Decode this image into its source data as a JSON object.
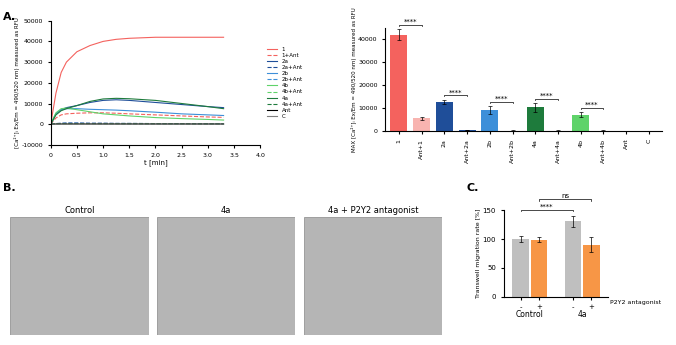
{
  "chart_data": [
    {
      "type": "line",
      "panel": "A.",
      "x_label": "t [min]",
      "y_label": "[Ca²⁺]ᵢ Ex/Em = 490/520 nm) measured as RFU",
      "x": [
        0,
        0.1,
        0.2,
        0.3,
        0.5,
        0.75,
        1,
        1.25,
        1.5,
        2,
        2.5,
        3,
        3.3
      ],
      "xlim": [
        0,
        4
      ],
      "xticks": [
        0,
        0.5,
        {
          "value": 1,
          "label": "1.0"
        },
        1.5,
        {
          "value": 2,
          "label": "2.0"
        },
        2.5,
        {
          "value": 3,
          "label": "3.0"
        },
        3.5,
        {
          "value": 4,
          "label": "4.0"
        }
      ],
      "ylim": [
        -10000,
        50000
      ],
      "yticks": [
        -10000,
        0,
        10000,
        20000,
        30000,
        40000,
        50000
      ],
      "legend": "right",
      "series": [
        {
          "name": "1",
          "color": "#f4625e",
          "line_style": "solid",
          "values": [
            0,
            15000,
            25000,
            30000,
            35000,
            38000,
            40000,
            41000,
            41500,
            42000,
            42000,
            42000,
            42000
          ]
        },
        {
          "name": "1+Ant",
          "color": "#f4625e",
          "line_style": "dashed",
          "values": [
            0,
            3000,
            4500,
            5000,
            5300,
            5500,
            5500,
            5300,
            5000,
            4500,
            4000,
            3500,
            3300
          ]
        },
        {
          "name": "2a",
          "color": "#1f4e99",
          "line_style": "solid",
          "values": [
            0,
            5000,
            7000,
            8000,
            9000,
            10500,
            11500,
            11800,
            11500,
            10500,
            9500,
            8500,
            8000
          ]
        },
        {
          "name": "2a+Ant",
          "color": "#1f4e99",
          "line_style": "dashed",
          "values": [
            0,
            300,
            500,
            600,
            600,
            500,
            500,
            400,
            400,
            300,
            300,
            200,
            200
          ]
        },
        {
          "name": "2b",
          "color": "#3d8fd9",
          "line_style": "solid",
          "values": [
            0,
            5000,
            7000,
            7500,
            7500,
            7200,
            7000,
            6800,
            6500,
            5800,
            5000,
            4500,
            4200
          ]
        },
        {
          "name": "2b+Ant",
          "color": "#3d8fd9",
          "line_style": "dashed",
          "values": [
            0,
            200,
            300,
            400,
            400,
            300,
            300,
            300,
            200,
            200,
            200,
            100,
            100
          ]
        },
        {
          "name": "4b",
          "color": "#5fd36a",
          "line_style": "solid",
          "values": [
            0,
            5500,
            7500,
            7800,
            7000,
            6000,
            5000,
            4500,
            4000,
            3200,
            2700,
            2300,
            2000
          ]
        },
        {
          "name": "4b+Ant",
          "color": "#5fd36a",
          "line_style": "dashed",
          "values": [
            0,
            200,
            300,
            300,
            300,
            300,
            200,
            200,
            200,
            200,
            100,
            100,
            100
          ]
        },
        {
          "name": "4a",
          "color": "#1e7b3c",
          "line_style": "solid",
          "values": [
            0,
            4500,
            6500,
            7500,
            9000,
            11000,
            12200,
            12500,
            12300,
            11500,
            10000,
            8500,
            7500
          ]
        },
        {
          "name": "4a+Ant",
          "color": "#1e7b3c",
          "line_style": "dashed",
          "values": [
            0,
            200,
            300,
            300,
            300,
            300,
            300,
            200,
            200,
            200,
            200,
            100,
            100
          ]
        },
        {
          "name": "Ant",
          "color": "#000000",
          "line_style": "solid",
          "values": [
            0,
            100,
            100,
            100,
            100,
            100,
            100,
            100,
            100,
            100,
            100,
            100,
            100
          ]
        },
        {
          "name": "C",
          "color": "#7f7f7f",
          "line_style": "solid",
          "values": [
            0,
            50,
            50,
            50,
            50,
            50,
            50,
            50,
            50,
            50,
            50,
            50,
            50
          ]
        }
      ]
    },
    {
      "type": "bar",
      "y_label": "MAX [Ca²⁺]ᵢ Ex/Em = 490/520 nm) measured as RFU",
      "categories": [
        "1",
        "Ant+1",
        "2a",
        "Ant+2a",
        "2b",
        "Ant+2b",
        "4a",
        "Ant+4a",
        "4b",
        "Ant+4b",
        "Ant",
        "C"
      ],
      "values": [
        42000,
        5500,
        12700,
        400,
        9100,
        200,
        10300,
        200,
        7200,
        200,
        100,
        100
      ],
      "errors": [
        2500,
        800,
        1000,
        100,
        1800,
        100,
        1800,
        100,
        1000,
        100,
        100,
        100
      ],
      "colors": [
        "#f4625e",
        "#f8b4b0",
        "#1f4e99",
        "#1f4e99",
        "#3d8fd9",
        "#3d8fd9",
        "#1e7b3c",
        "#1e7b3c",
        "#5fd36a",
        "#5fd36a",
        "#333333",
        "#888888"
      ],
      "ylim": [
        0,
        45000
      ],
      "yticks": [
        0,
        10000,
        20000,
        30000,
        40000
      ],
      "annotations": [
        {
          "between": [
            "1",
            "Ant+1"
          ],
          "text": "****"
        },
        {
          "between": [
            "2a",
            "Ant+2a"
          ],
          "text": "****"
        },
        {
          "between": [
            "2b",
            "Ant+2b"
          ],
          "text": "****"
        },
        {
          "between": [
            "4a",
            "Ant+4a"
          ],
          "text": "****"
        },
        {
          "between": [
            "4b",
            "Ant+4b"
          ],
          "text": "****"
        }
      ]
    },
    {
      "type": "image",
      "panel": "B.",
      "titles": [
        "Control",
        "4a",
        "4a + P2Y2 antagonist"
      ]
    },
    {
      "type": "bar",
      "panel": "C.",
      "y_label": "Transwell migration rate [%]",
      "axis_label": "P2Y2 antagonist",
      "categories": [
        "Control",
        "4a"
      ],
      "series": [
        {
          "name": "-",
          "color": "#bfbfbf",
          "values": [
            100,
            131
          ],
          "errors": [
            5,
            10
          ]
        },
        {
          "name": "+",
          "color": "#f79646",
          "values": [
            99,
            90
          ],
          "errors": [
            4,
            13
          ]
        }
      ],
      "ylim": [
        0,
        150
      ],
      "yticks": [
        0,
        50,
        100,
        150
      ],
      "annotations": [
        {
          "between": [
            [
              "Control",
              "-"
            ],
            [
              "4a",
              "-"
            ]
          ],
          "text": "****"
        },
        {
          "between": [
            [
              "Control",
              "+"
            ],
            [
              "4a",
              "+"
            ]
          ],
          "text": "ns"
        }
      ]
    }
  ]
}
